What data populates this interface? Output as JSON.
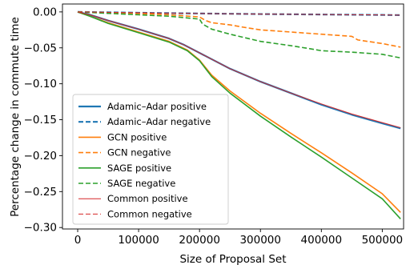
{
  "chart_data": {
    "type": "line",
    "xlabel": "Size of Proposal Set",
    "ylabel": "Percentage change in commute time",
    "xlim": [
      -25000,
      535000
    ],
    "ylim": [
      -0.302,
      0.011
    ],
    "xticks": [
      0,
      100000,
      200000,
      300000,
      400000,
      500000
    ],
    "xtick_labels": [
      "0",
      "100000",
      "200000",
      "300000",
      "400000",
      "500000"
    ],
    "yticks": [
      0.0,
      -0.05,
      -0.1,
      -0.15,
      -0.2,
      -0.25,
      -0.3
    ],
    "ytick_labels": [
      "0.00",
      "−0.05",
      "−0.10",
      "−0.15",
      "−0.20",
      "−0.25",
      "−0.30"
    ],
    "grid": false,
    "legend_position": "lower-left",
    "series": [
      {
        "name": "Adamic–Adar positive",
        "color": "#1f77b4",
        "dash": "solid",
        "width": 2.2,
        "x": [
          0,
          20000,
          50000,
          100000,
          150000,
          175000,
          200000,
          250000,
          300000,
          350000,
          400000,
          450000,
          500000,
          530000
        ],
        "y": [
          0.0,
          -0.004,
          -0.012,
          -0.024,
          -0.037,
          -0.046,
          -0.057,
          -0.079,
          -0.097,
          -0.113,
          -0.129,
          -0.143,
          -0.155,
          -0.162
        ]
      },
      {
        "name": "Adamic–Adar negative",
        "color": "#1f77b4",
        "dash": "dashed",
        "width": 2.2,
        "x": [
          0,
          100000,
          200000,
          300000,
          400000,
          500000,
          530000
        ],
        "y": [
          0.0,
          -0.0012,
          -0.0022,
          -0.003,
          -0.0036,
          -0.0042,
          -0.0045
        ]
      },
      {
        "name": "GCN positive",
        "color": "#ff7f0e",
        "dash": "solid",
        "width": 1.6,
        "x": [
          0,
          20000,
          50000,
          100000,
          150000,
          180000,
          200000,
          220000,
          250000,
          300000,
          350000,
          400000,
          450000,
          500000,
          530000
        ],
        "y": [
          0.0,
          -0.006,
          -0.015,
          -0.028,
          -0.041,
          -0.053,
          -0.067,
          -0.088,
          -0.11,
          -0.141,
          -0.169,
          -0.196,
          -0.224,
          -0.253,
          -0.279
        ]
      },
      {
        "name": "GCN negative",
        "color": "#ff7f0e",
        "dash": "dashed",
        "width": 1.6,
        "x": [
          0,
          50000,
          100000,
          150000,
          200000,
          210000,
          220000,
          250000,
          270000,
          300000,
          350000,
          400000,
          450000,
          460000,
          500000,
          530000
        ],
        "y": [
          0.0,
          -0.001,
          -0.002,
          -0.004,
          -0.007,
          -0.012,
          -0.015,
          -0.018,
          -0.021,
          -0.025,
          -0.028,
          -0.031,
          -0.034,
          -0.039,
          -0.044,
          -0.049
        ]
      },
      {
        "name": "SAGE positive",
        "color": "#2ca02c",
        "dash": "solid",
        "width": 1.6,
        "x": [
          0,
          20000,
          50000,
          100000,
          150000,
          180000,
          200000,
          220000,
          250000,
          300000,
          350000,
          400000,
          450000,
          500000,
          530000
        ],
        "y": [
          0.0,
          -0.006,
          -0.016,
          -0.029,
          -0.042,
          -0.054,
          -0.068,
          -0.09,
          -0.113,
          -0.145,
          -0.174,
          -0.202,
          -0.231,
          -0.26,
          -0.288
        ]
      },
      {
        "name": "SAGE negative",
        "color": "#2ca02c",
        "dash": "dashed",
        "width": 1.6,
        "x": [
          0,
          50000,
          100000,
          150000,
          200000,
          205000,
          220000,
          250000,
          275000,
          300000,
          350000,
          380000,
          400000,
          450000,
          500000,
          530000
        ],
        "y": [
          0.0,
          -0.002,
          -0.004,
          -0.006,
          -0.01,
          -0.017,
          -0.024,
          -0.031,
          -0.036,
          -0.041,
          -0.047,
          -0.051,
          -0.054,
          -0.056,
          -0.059,
          -0.064
        ]
      },
      {
        "name": "Common positive",
        "color": "#d62728",
        "dash": "solid",
        "width": 1.0,
        "x": [
          0,
          20000,
          50000,
          100000,
          150000,
          175000,
          200000,
          250000,
          300000,
          350000,
          400000,
          450000,
          500000,
          530000
        ],
        "y": [
          0.0,
          -0.004,
          -0.012,
          -0.024,
          -0.037,
          -0.046,
          -0.057,
          -0.079,
          -0.097,
          -0.113,
          -0.128,
          -0.142,
          -0.154,
          -0.161
        ]
      },
      {
        "name": "Common negative",
        "color": "#d62728",
        "dash": "dashed",
        "width": 1.0,
        "x": [
          0,
          100000,
          200000,
          300000,
          400000,
          500000,
          530000
        ],
        "y": [
          0.0,
          -0.0012,
          -0.0022,
          -0.003,
          -0.0036,
          -0.0042,
          -0.0045
        ]
      }
    ]
  }
}
